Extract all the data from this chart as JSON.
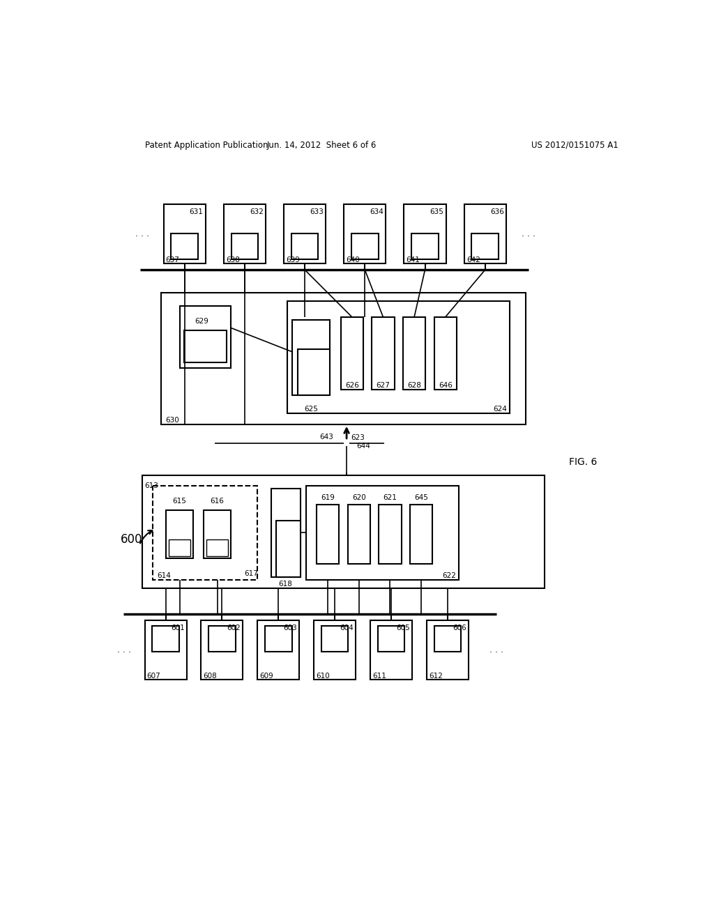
{
  "bg_color": "#ffffff",
  "header_left": "Patent Application Publication",
  "header_center": "Jun. 14, 2012  Sheet 6 of 6",
  "header_right": "US 2012/0151075 A1",
  "fig_label": "FIG. 6",
  "diagram_label": "600",
  "top_row_labels": [
    "631",
    "632",
    "633",
    "634",
    "635",
    "636"
  ],
  "top_row_sub_labels": [
    "637",
    "638",
    "639",
    "640",
    "641",
    "642"
  ],
  "bot_row_labels": [
    "601",
    "602",
    "603",
    "604",
    "605",
    "606"
  ],
  "bot_row_sub_labels": [
    "607",
    "608",
    "609",
    "610",
    "611",
    "612"
  ]
}
